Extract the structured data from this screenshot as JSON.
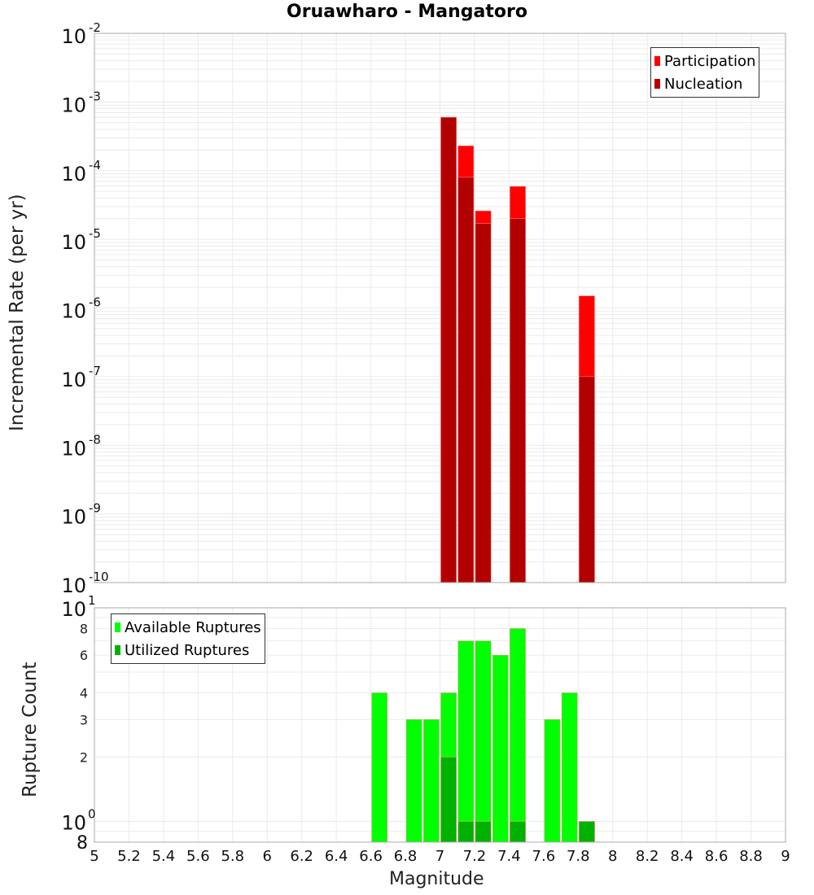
{
  "chart_data": [
    {
      "type": "bar",
      "title": "Oruawharo - Mangatoro",
      "xlabel": "Magnitude",
      "ylabel": "Incremental Rate (per yr)",
      "yscale": "log",
      "xlim": [
        5,
        9
      ],
      "ylim": [
        1e-10,
        0.01
      ],
      "grid": true,
      "legend_position": "top-right",
      "y_tick_labels": [
        "10^-2",
        "10^-3",
        "10^-4",
        "10^-5",
        "10^-6",
        "10^-7",
        "10^-8",
        "10^-9",
        "10^-10"
      ],
      "x": [
        7.05,
        7.15,
        7.25,
        7.45,
        7.85
      ],
      "series": [
        {
          "name": "Participation",
          "color": "#ff0000",
          "values": [
            0.0006,
            0.00023,
            2.6e-05,
            5.9e-05,
            1.5e-06
          ]
        },
        {
          "name": "Nucleation",
          "color": "#b20000",
          "values": [
            0.0006,
            8e-05,
            1.7e-05,
            2e-05,
            1e-07
          ]
        }
      ]
    },
    {
      "type": "bar",
      "title": "",
      "xlabel": "Magnitude",
      "ylabel": "Rupture Count",
      "yscale": "log",
      "xlim": [
        5,
        9
      ],
      "ylim": [
        0.8,
        10
      ],
      "grid": true,
      "legend_position": "top-left",
      "y_tick_labels": [
        "10^1",
        "8",
        "6",
        "4",
        "3",
        "2",
        "10^0",
        "8"
      ],
      "x_tick_labels": [
        "5",
        "5.2",
        "5.4",
        "5.6",
        "5.8",
        "6",
        "6.2",
        "6.4",
        "6.6",
        "6.8",
        "7",
        "7.2",
        "7.4",
        "7.6",
        "7.8",
        "8",
        "8.2",
        "8.4",
        "8.6",
        "8.8",
        "9"
      ],
      "x": [
        6.65,
        6.85,
        6.95,
        7.05,
        7.15,
        7.25,
        7.35,
        7.45,
        7.65,
        7.75,
        7.85
      ],
      "series": [
        {
          "name": "Available Ruptures",
          "color": "#00ff00",
          "values": [
            4,
            3,
            3,
            4,
            7,
            7,
            6,
            8,
            3,
            4,
            1
          ]
        },
        {
          "name": "Utilized Ruptures",
          "color": "#00b200",
          "values": [
            0,
            0,
            0,
            2,
            1,
            1,
            0,
            1,
            0,
            0,
            1
          ]
        }
      ]
    }
  ],
  "labels": {
    "title": "Oruawharo - Mangatoro",
    "top_ylabel": "Incremental Rate (per yr)",
    "bottom_ylabel": "Rupture Count",
    "xlabel": "Magnitude",
    "legend_top": [
      "Participation",
      "Nucleation"
    ],
    "legend_bottom": [
      "Available Ruptures",
      "Utilized Ruptures"
    ]
  }
}
